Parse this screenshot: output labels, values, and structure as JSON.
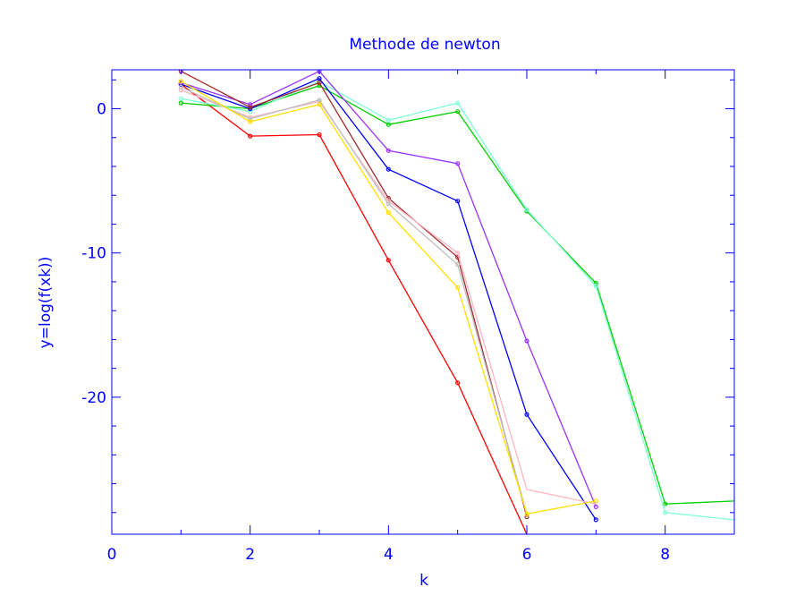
{
  "chart_data": {
    "type": "line",
    "title": "Methode de newton",
    "xlabel": "k",
    "ylabel": "y=log(f(xk))",
    "xlim": [
      0,
      9
    ],
    "ylim": [
      -29.5,
      2.7
    ],
    "x_ticks": [
      0,
      2,
      4,
      6,
      8
    ],
    "x_tick_labels": [
      "0",
      "2",
      "4",
      "6",
      "8"
    ],
    "y_ticks": [
      0,
      -10,
      -20
    ],
    "y_tick_labels": [
      "0",
      "-10",
      "-20"
    ],
    "grid": false,
    "axis_color": "#0000ff",
    "series": [
      {
        "color": "#ff0000",
        "x": [
          1,
          2,
          3,
          4,
          5,
          6
        ],
        "y": [
          1.7,
          -1.9,
          -1.8,
          -10.5,
          -19.0,
          -29.5
        ],
        "markers": [
          true,
          true,
          true,
          true,
          true,
          false
        ]
      },
      {
        "color": "#00d000",
        "x": [
          1,
          2,
          3,
          4,
          5,
          6,
          7,
          8,
          9
        ],
        "y": [
          0.4,
          0.0,
          1.6,
          -1.1,
          -0.2,
          -7.1,
          -12.1,
          -27.4,
          -27.2
        ],
        "markers": [
          true,
          true,
          true,
          true,
          true,
          true,
          true,
          true,
          false
        ]
      },
      {
        "color": "#7fffd4",
        "x": [
          1,
          2,
          3,
          4,
          5,
          6,
          7,
          8,
          9
        ],
        "y": [
          0.7,
          -0.2,
          1.9,
          -0.8,
          0.4,
          -7.0,
          -12.3,
          -28.0,
          -28.5
        ],
        "markers": [
          true,
          true,
          true,
          true,
          true,
          true,
          true,
          true,
          false
        ]
      },
      {
        "color": "#0000ff",
        "x": [
          1,
          2,
          3,
          4,
          5,
          6,
          7
        ],
        "y": [
          1.7,
          0.0,
          2.1,
          -4.2,
          -6.4,
          -21.2,
          -28.5
        ],
        "markers": [
          true,
          true,
          true,
          true,
          true,
          true,
          true
        ]
      },
      {
        "color": "#9933ff",
        "x": [
          1,
          2,
          3,
          4,
          5,
          6,
          7
        ],
        "y": [
          1.8,
          0.3,
          2.6,
          -2.9,
          -3.8,
          -16.1,
          -27.6
        ],
        "markers": [
          true,
          true,
          true,
          true,
          true,
          true,
          true
        ]
      },
      {
        "color": "#a52a2a",
        "x": [
          1,
          2,
          3,
          4,
          5,
          6
        ],
        "y": [
          2.6,
          0.1,
          1.8,
          -6.2,
          -10.3,
          -28.3
        ],
        "markers": [
          true,
          true,
          true,
          true,
          true,
          true
        ]
      },
      {
        "color": "#ffb6c1",
        "x": [
          1,
          2,
          3,
          4,
          5,
          6,
          7
        ],
        "y": [
          1.3,
          -0.6,
          0.5,
          -6.4,
          -10.0,
          -26.4,
          -27.4
        ],
        "markers": [
          true,
          true,
          true,
          true,
          true,
          false,
          false
        ]
      },
      {
        "color": "#bebebe",
        "x": [
          1,
          2,
          3,
          4,
          5,
          6
        ],
        "y": [
          1.5,
          -0.7,
          0.6,
          -6.6,
          -10.8,
          -28.1
        ],
        "markers": [
          true,
          true,
          true,
          true,
          true,
          false
        ]
      },
      {
        "color": "#ffe000",
        "x": [
          1,
          2,
          3,
          4,
          5,
          6,
          7
        ],
        "y": [
          1.9,
          -0.9,
          0.3,
          -7.2,
          -12.4,
          -28.1,
          -27.2
        ],
        "markers": [
          true,
          true,
          true,
          true,
          true,
          true,
          true
        ]
      }
    ]
  }
}
